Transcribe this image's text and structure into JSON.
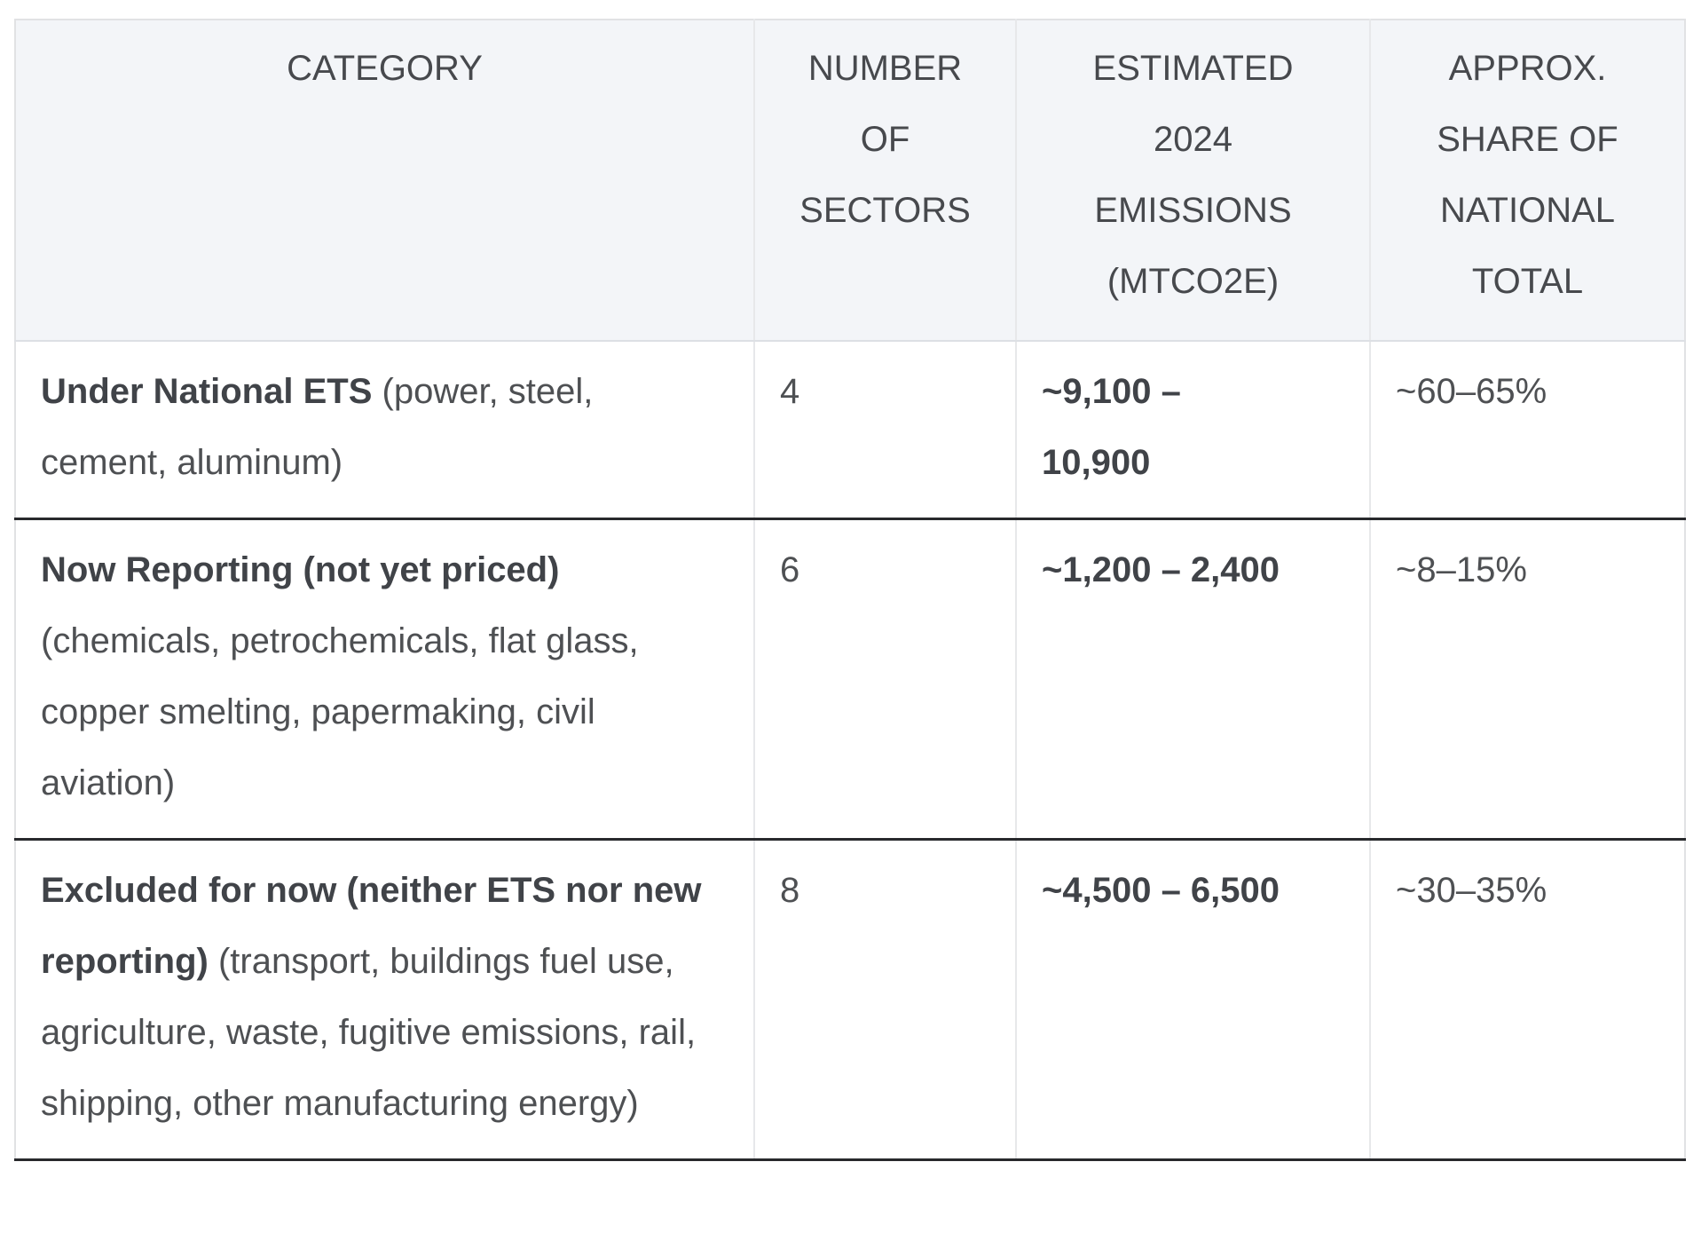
{
  "colors": {
    "header_bg": "#f3f5f8",
    "light_border": "#e1e2e4",
    "dark_row_border": "#28292c",
    "text": "#4e5053",
    "bold_text": "#404348"
  },
  "table": {
    "header": {
      "category": "CATEGORY",
      "sectors": "NUMBER\nOF\nSECTORS",
      "emissions": "ESTIMATED\n2024\nEMISSIONS\n(MTCO2E)",
      "share": "APPROX.\nSHARE OF\nNATIONAL\nTOTAL"
    },
    "rows": [
      {
        "category_bold": "Under National ETS",
        "category_rest": " (power, steel, cement, aluminum)",
        "sectors": "4",
        "emissions": "~9,100 –\n10,900",
        "share": "~60–65%"
      },
      {
        "category_bold": "Now Reporting (not yet priced)",
        "category_rest": " (chemicals, petrochemicals, flat glass, copper smelting, papermaking, civil aviation)",
        "sectors": "6",
        "emissions": "~1,200 – 2,400",
        "share": "~8–15%"
      },
      {
        "category_bold": "Excluded for now (neither ETS nor new reporting)",
        "category_rest": " (transport, buildings fuel use, agriculture, waste, fugitive emissions, rail, shipping, other manufacturing energy)",
        "sectors": "8",
        "emissions": "~4,500 – 6,500",
        "share": "~30–35%"
      }
    ]
  },
  "chart_data": {
    "type": "table",
    "columns": [
      "CATEGORY",
      "NUMBER OF SECTORS",
      "ESTIMATED 2024 EMISSIONS (MTCO2E)",
      "APPROX. SHARE OF NATIONAL TOTAL"
    ],
    "rows": [
      [
        "Under National ETS (power, steel, cement, aluminum)",
        "4",
        "~9,100 – 10,900",
        "~60–65%"
      ],
      [
        "Now Reporting (not yet priced) (chemicals, petrochemicals, flat glass, copper smelting, papermaking, civil aviation)",
        "6",
        "~1,200 – 2,400",
        "~8–15%"
      ],
      [
        "Excluded for now (neither ETS nor new reporting) (transport, buildings fuel use, agriculture, waste, fugitive emissions, rail, shipping, other manufacturing energy)",
        "8",
        "~4,500 – 6,500",
        "~30–35%"
      ]
    ]
  }
}
